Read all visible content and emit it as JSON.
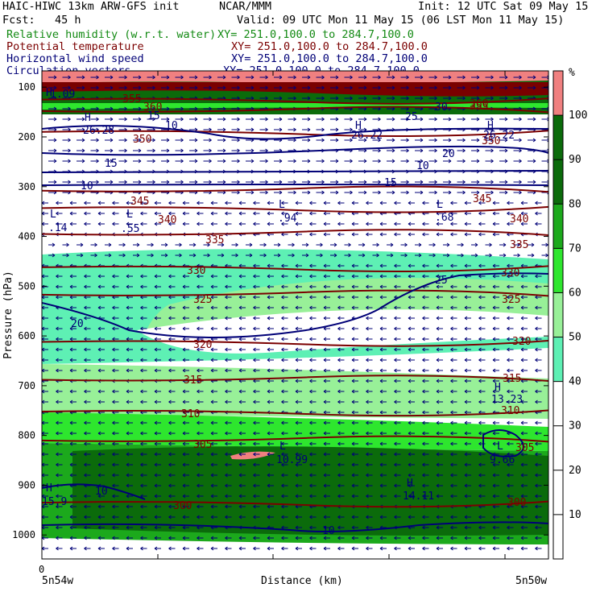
{
  "header": {
    "model_line": "HAIC-HIWC 13km ARW-GFS init",
    "org": "NCAR/MMM",
    "init_line": "Init: 12 UTC Sat 09 May 15",
    "fcst_line": "Fcst:   45 h",
    "valid_line": "Valid: 09 UTC Mon 11 May 15 (06 LST Mon 11 May 15)",
    "fields": [
      {
        "name": "Relative humidity (w.r.t. water)",
        "xy": "XY= 251.0,100.0 to 284.7,100.0",
        "color": "#138a13"
      },
      {
        "name": "Potential temperature",
        "xy": "XY= 251.0,100.0 to 284.7,100.0",
        "color": "#7b0000"
      },
      {
        "name": "Horizontal wind speed",
        "xy": "XY= 251.0,100.0 to 284.7,100.0",
        "color": "#000077"
      },
      {
        "name": "Circulation vectors",
        "xy": "XY= 251.0,100.0 to 284.7,100.0",
        "color": "#000077"
      }
    ]
  },
  "colorbar": {
    "unit": "%",
    "levels": [
      10,
      20,
      30,
      40,
      50,
      60,
      70,
      80,
      90,
      100
    ],
    "colors": {
      "lt50": "#ffffff",
      "50_60": "#5ef0b4",
      "60_70": "#98f098",
      "70_80": "#2ee62e",
      "80_90": "#1ca91c",
      "90_100": "#0b6b0b",
      "gt100": "#f08080"
    }
  },
  "chart_data": {
    "type": "heatmap",
    "ylabel": "Pressure (hPa)",
    "xlabel": "Distance (km)",
    "y_ticks": [
      100,
      200,
      300,
      400,
      500,
      600,
      700,
      800,
      900,
      1000
    ],
    "x_tick_label": "0",
    "x_left_label": "5n54w",
    "x_right_label": "5n50w",
    "theta_contours": [
      {
        "value": "300",
        "p": 935
      },
      {
        "value": "305",
        "p": 810
      },
      {
        "value": "310",
        "p": 752
      },
      {
        "value": "315",
        "p": 688
      },
      {
        "value": "320",
        "p": 612
      },
      {
        "value": "325",
        "p": 517
      },
      {
        "value": "330",
        "p": 462
      },
      {
        "value": "335",
        "p": 395
      },
      {
        "value": "340",
        "p": 343
      },
      {
        "value": "345",
        "p": 308
      },
      {
        "value": "350",
        "p": 190
      },
      {
        "value": "355",
        "p": 148
      },
      {
        "value": "360",
        "p": 125
      }
    ],
    "wind_contour_labels": [
      "10",
      "15",
      "20",
      "25",
      "30",
      "10",
      "15",
      "20",
      "25",
      "10",
      "10",
      "15",
      "10"
    ],
    "extrema": [
      {
        "kind": "L",
        "value": ".14"
      },
      {
        "kind": "L",
        "value": ".55"
      },
      {
        "kind": "L",
        "value": ".94"
      },
      {
        "kind": "L",
        "value": ".68"
      },
      {
        "kind": "H",
        "value": "26.28"
      },
      {
        "kind": "H",
        "value": "26.22"
      },
      {
        "kind": "H",
        "value": "26.22"
      },
      {
        "kind": "H",
        "value": "13.23"
      },
      {
        "kind": "L",
        "value": "10.99"
      },
      {
        "kind": "L",
        "value": "9.66"
      },
      {
        "kind": "H",
        "value": "14.11"
      },
      {
        "kind": "H",
        "value": "15.9"
      },
      {
        "kind": "H",
        "value": "1.09"
      }
    ]
  }
}
